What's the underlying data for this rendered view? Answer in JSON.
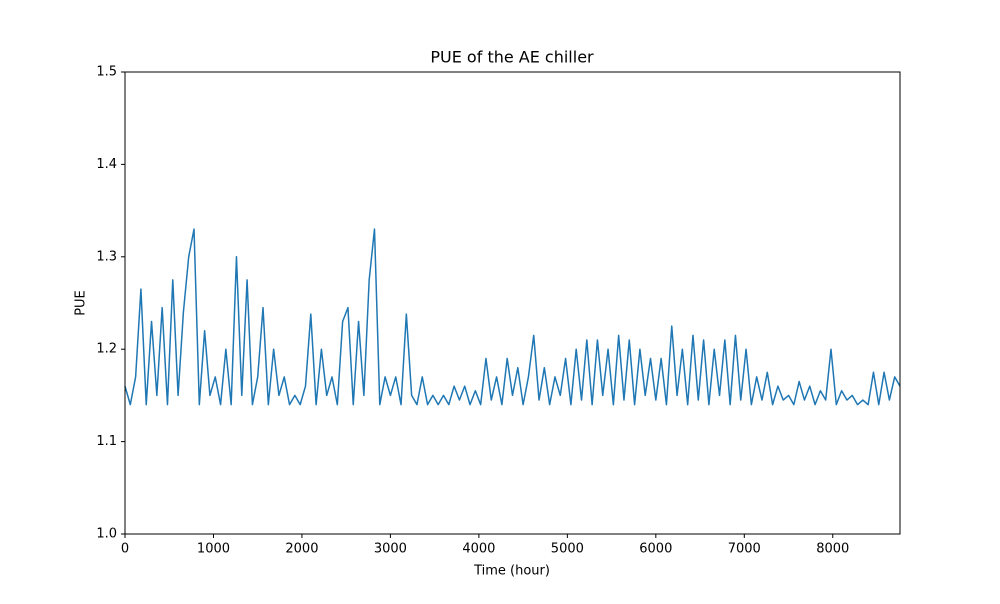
{
  "chart_data": {
    "type": "line",
    "title": "PUE of the AE chiller",
    "x_label": "Time (hour)",
    "y_label": "PUE",
    "color": "#1f77b4",
    "x": [
      0,
      60,
      120,
      180,
      240,
      300,
      360,
      420,
      480,
      540,
      600,
      660,
      720,
      780,
      840,
      900,
      960,
      1020,
      1080,
      1140,
      1200,
      1260,
      1320,
      1380,
      1440,
      1500,
      1560,
      1620,
      1680,
      1740,
      1800,
      1860,
      1920,
      1980,
      2040,
      2100,
      2160,
      2220,
      2280,
      2340,
      2400,
      2460,
      2520,
      2580,
      2640,
      2700,
      2760,
      2820,
      2880,
      2940,
      3000,
      3060,
      3120,
      3180,
      3240,
      3300,
      3360,
      3420,
      3480,
      3540,
      3600,
      3660,
      3720,
      3780,
      3840,
      3900,
      3960,
      4020,
      4080,
      4140,
      4200,
      4260,
      4320,
      4380,
      4440,
      4500,
      4560,
      4620,
      4680,
      4740,
      4800,
      4860,
      4920,
      4980,
      5040,
      5100,
      5160,
      5220,
      5280,
      5340,
      5400,
      5460,
      5520,
      5580,
      5640,
      5700,
      5760,
      5820,
      5880,
      5940,
      6000,
      6060,
      6120,
      6180,
      6240,
      6300,
      6360,
      6420,
      6480,
      6540,
      6600,
      6660,
      6720,
      6780,
      6840,
      6900,
      6960,
      7020,
      7080,
      7140,
      7200,
      7260,
      7320,
      7380,
      7440,
      7500,
      7560,
      7620,
      7680,
      7740,
      7800,
      7860,
      7920,
      7980,
      8040,
      8100,
      8160,
      8220,
      8280,
      8340,
      8400,
      8460,
      8520,
      8580,
      8640,
      8700,
      8760
    ],
    "values": [
      1.16,
      1.14,
      1.17,
      1.265,
      1.14,
      1.23,
      1.15,
      1.245,
      1.14,
      1.275,
      1.15,
      1.24,
      1.3,
      1.33,
      1.14,
      1.22,
      1.15,
      1.17,
      1.14,
      1.2,
      1.14,
      1.3,
      1.15,
      1.275,
      1.14,
      1.17,
      1.245,
      1.14,
      1.2,
      1.15,
      1.17,
      1.14,
      1.15,
      1.14,
      1.16,
      1.238,
      1.14,
      1.2,
      1.15,
      1.17,
      1.14,
      1.23,
      1.245,
      1.14,
      1.23,
      1.15,
      1.275,
      1.33,
      1.14,
      1.17,
      1.15,
      1.17,
      1.14,
      1.238,
      1.15,
      1.14,
      1.17,
      1.14,
      1.15,
      1.14,
      1.15,
      1.14,
      1.16,
      1.145,
      1.16,
      1.14,
      1.155,
      1.14,
      1.19,
      1.145,
      1.17,
      1.14,
      1.19,
      1.15,
      1.18,
      1.14,
      1.17,
      1.215,
      1.145,
      1.18,
      1.14,
      1.17,
      1.15,
      1.19,
      1.14,
      1.2,
      1.145,
      1.21,
      1.14,
      1.21,
      1.15,
      1.2,
      1.14,
      1.215,
      1.145,
      1.21,
      1.14,
      1.2,
      1.15,
      1.19,
      1.145,
      1.19,
      1.14,
      1.225,
      1.15,
      1.2,
      1.14,
      1.215,
      1.145,
      1.21,
      1.14,
      1.2,
      1.15,
      1.21,
      1.14,
      1.215,
      1.145,
      1.2,
      1.14,
      1.17,
      1.145,
      1.175,
      1.14,
      1.16,
      1.145,
      1.15,
      1.14,
      1.165,
      1.145,
      1.16,
      1.14,
      1.155,
      1.145,
      1.2,
      1.14,
      1.155,
      1.145,
      1.15,
      1.14,
      1.145,
      1.14,
      1.175,
      1.14,
      1.175,
      1.145,
      1.17,
      1.16
    ],
    "xlim": [
      0,
      8760
    ],
    "xticks": [
      0,
      1000,
      2000,
      3000,
      4000,
      5000,
      6000,
      7000,
      8000
    ],
    "ylim": [
      1.0,
      1.5
    ],
    "yticks": [
      {
        "value": 1,
        "label": "1.0"
      },
      1.1,
      1.2,
      1.3,
      1.4,
      1.5
    ]
  }
}
